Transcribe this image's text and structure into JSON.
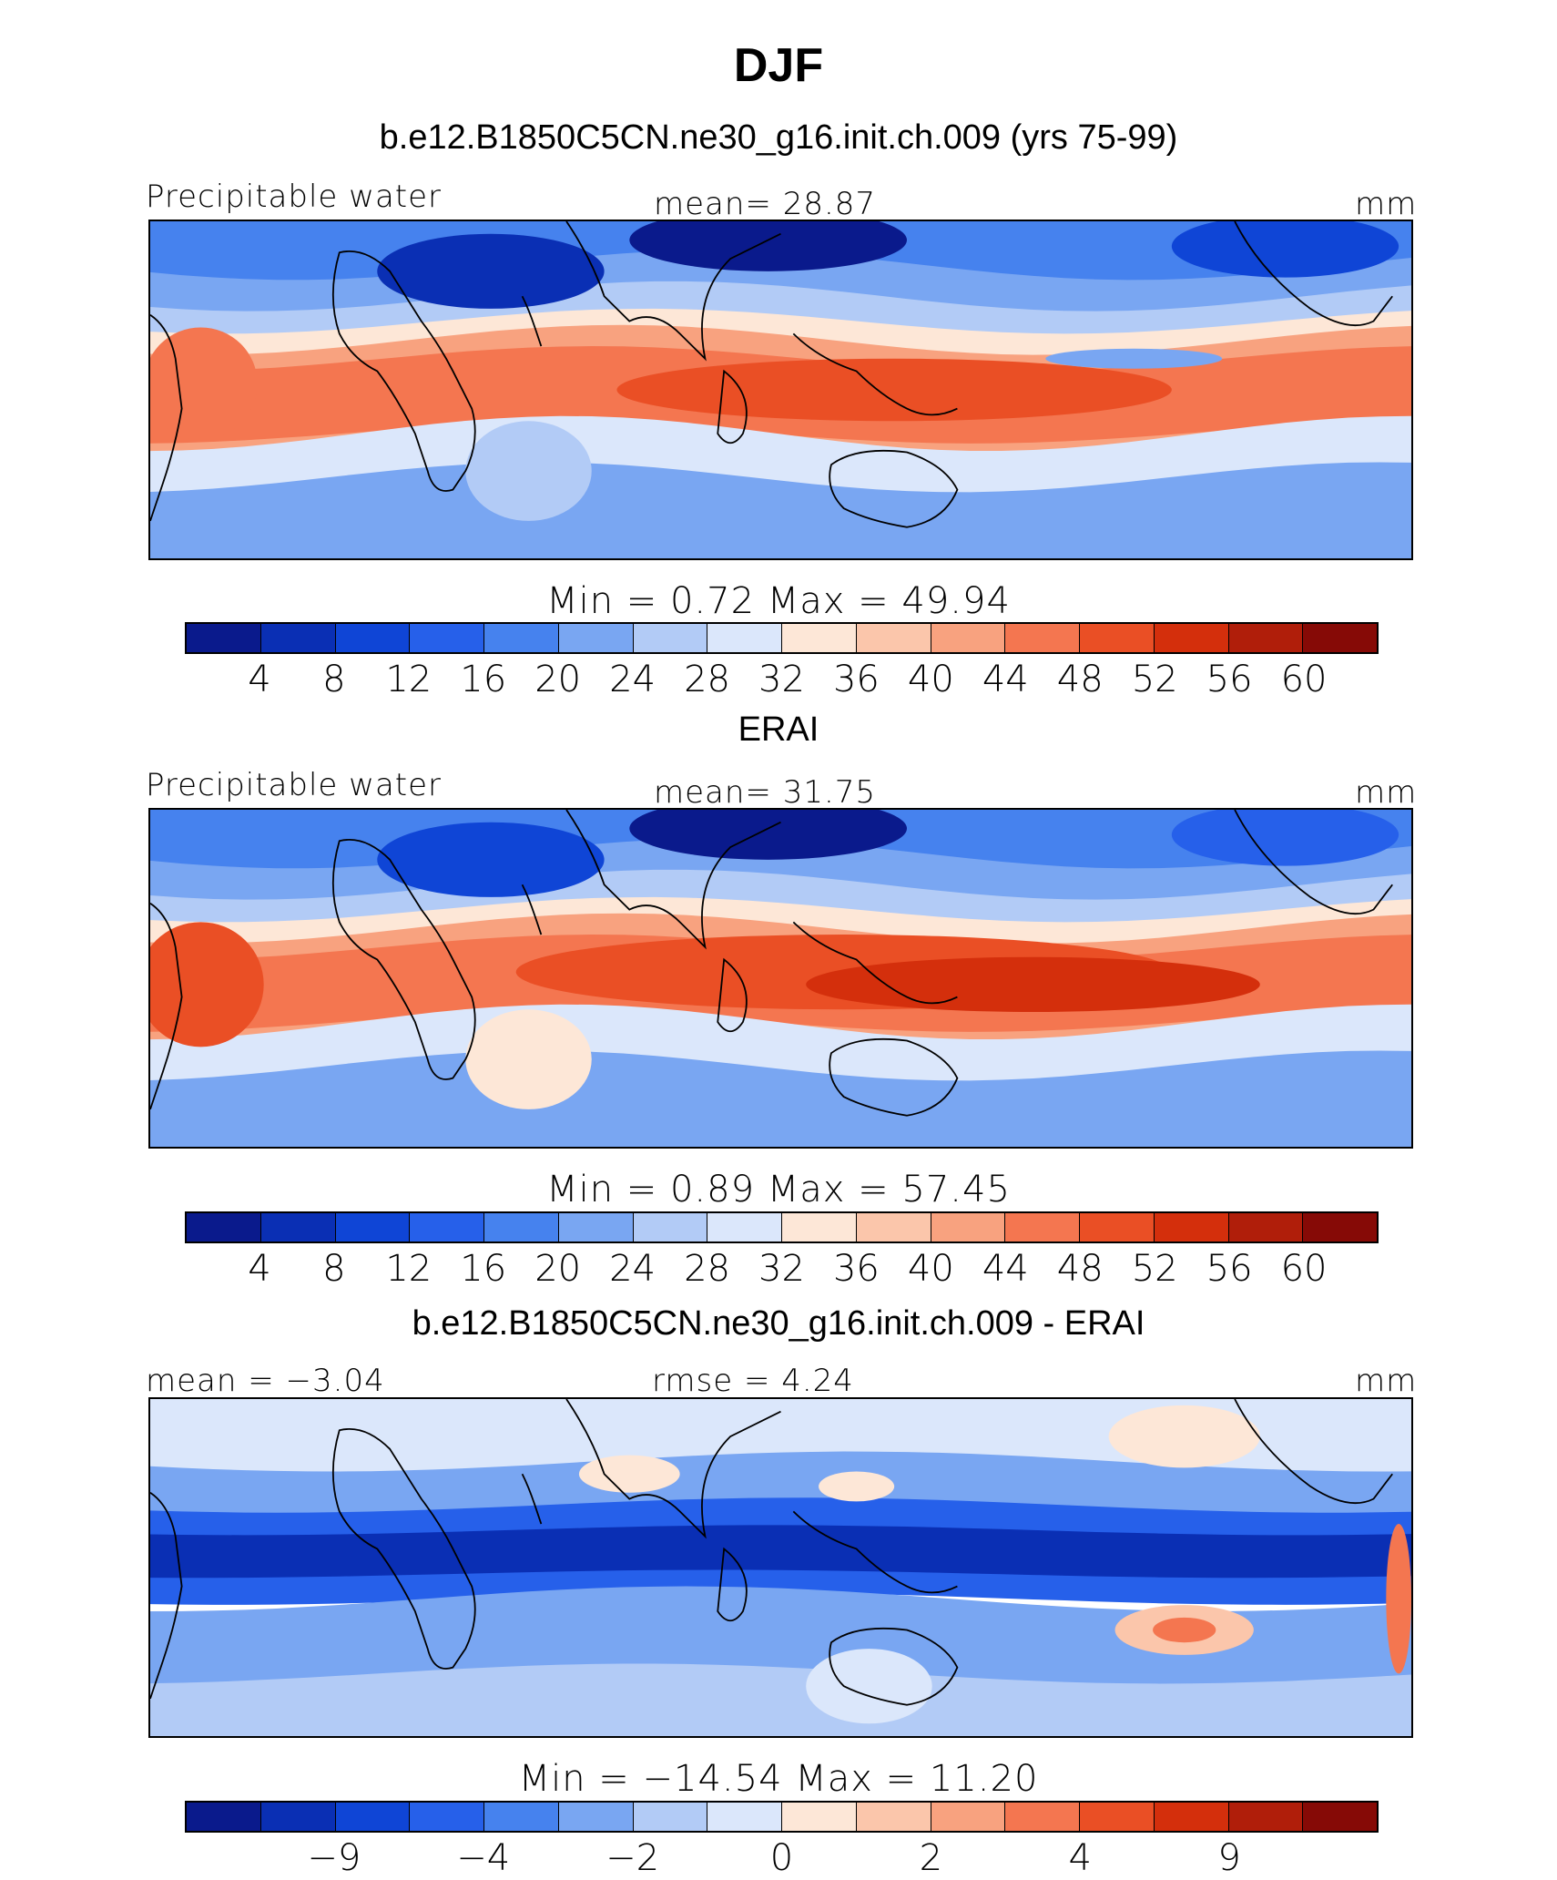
{
  "chart_data": [
    {
      "type": "heatmap",
      "title": "DJF",
      "subtitle": "b.e12.B1850C5CN.ne30_g16.init.ch.009 (yrs 75-99)",
      "left_label": "Precipitable water",
      "center_label": "mean=   28.87",
      "units": "mm",
      "stats": "Min  =     0.72  Max  =    49.94",
      "min": 0.72,
      "max": 49.94,
      "mean": 28.87,
      "colorbar_ticks": [
        "4",
        "8",
        "12",
        "16",
        "20",
        "24",
        "28",
        "32",
        "36",
        "40",
        "44",
        "48",
        "52",
        "56",
        "60"
      ]
    },
    {
      "type": "heatmap",
      "subtitle": "ERAI",
      "left_label": "Precipitable water",
      "center_label": "mean=   31.75",
      "units": "mm",
      "stats": "Min  =     0.89  Max  =    57.45",
      "min": 0.89,
      "max": 57.45,
      "mean": 31.75,
      "colorbar_ticks": [
        "4",
        "8",
        "12",
        "16",
        "20",
        "24",
        "28",
        "32",
        "36",
        "40",
        "44",
        "48",
        "52",
        "56",
        "60"
      ]
    },
    {
      "type": "heatmap",
      "subtitle": "b.e12.B1850C5CN.ne30_g16.init.ch.009 - ERAI",
      "left_label": "mean  =   −3.04",
      "center_label": "rmse  =     4.24",
      "units": "mm",
      "stats": "Min  =  −14.54  Max  =    11.20",
      "min": -14.54,
      "max": 11.2,
      "mean": -3.04,
      "rmse": 4.24,
      "colorbar_ticks": [
        "−9",
        "−4",
        "−2",
        "0",
        "2",
        "4",
        "9"
      ]
    }
  ],
  "palette": [
    "#0a1a8c",
    "#0a2fb4",
    "#0f45d6",
    "#2660ea",
    "#4682ee",
    "#79a6f2",
    "#b2cbf6",
    "#dbe7fb",
    "#fde7d7",
    "#fbc6ab",
    "#f8a27f",
    "#f47650",
    "#ea4f25",
    "#d42f0c",
    "#b01e0a",
    "#860a06"
  ]
}
